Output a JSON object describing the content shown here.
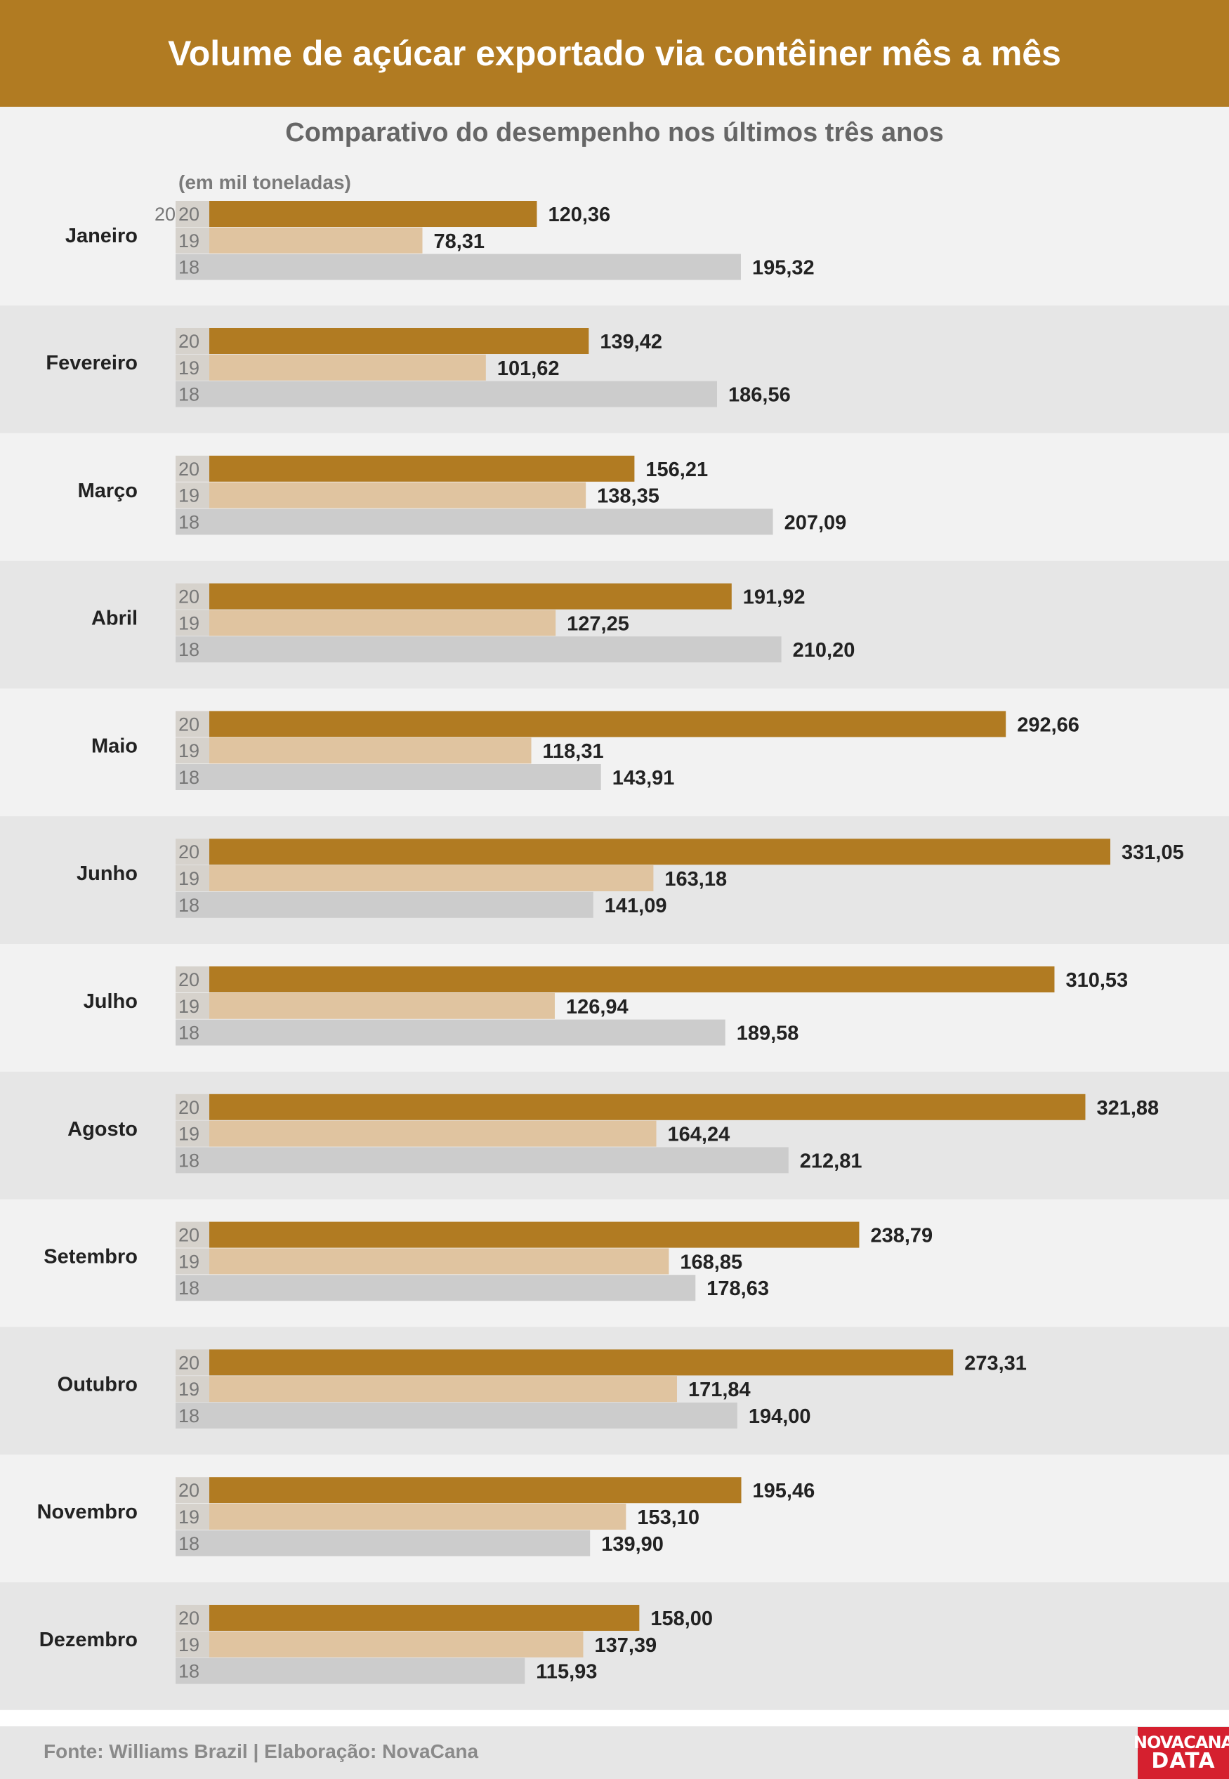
{
  "header": {
    "title": "Volume de açúcar exportado via contêiner mês a mês"
  },
  "footer": {
    "source": "Fonte: Williams Brazil | Elaboração: NovaCana"
  },
  "logo": {
    "line1": "NOVACANA",
    "line2": "DATA"
  },
  "colors": {
    "header_bg": "#b17b22",
    "series_2020": "#b17b22",
    "series_2019": "#e0c4a0",
    "series_2018": "#cccccc",
    "band_light": "#f2f2f2",
    "band_dark": "#e6e6e6",
    "logo_bg": "#d5202f"
  },
  "chart_data": {
    "type": "bar",
    "orientation": "horizontal",
    "title": "Volume de açúcar exportado via contêiner mês a mês",
    "subtitle": "Comparativo do desempenho nos últimos três anos",
    "unit_label": "(em mil toneladas)",
    "categories": [
      "Janeiro",
      "Fevereiro",
      "Março",
      "Abril",
      "Maio",
      "Junho",
      "Julho",
      "Agosto",
      "Setembro",
      "Outubro",
      "Novembro",
      "Dezembro"
    ],
    "series": [
      {
        "name": "20",
        "values": [
          120.36,
          139.42,
          156.21,
          191.92,
          292.66,
          331.05,
          310.53,
          321.88,
          238.79,
          273.31,
          195.46,
          158.0
        ]
      },
      {
        "name": "19",
        "values": [
          78.31,
          101.62,
          138.35,
          127.25,
          118.31,
          163.18,
          126.94,
          164.24,
          168.85,
          171.84,
          153.1,
          137.39
        ]
      },
      {
        "name": "18",
        "values": [
          195.32,
          186.56,
          207.09,
          210.2,
          143.91,
          141.09,
          189.58,
          212.81,
          178.63,
          194.0,
          139.9,
          115.93
        ]
      }
    ],
    "data_labels": [
      [
        "120,36",
        "78,31",
        "195,32"
      ],
      [
        "139,42",
        "101,62",
        "186,56"
      ],
      [
        "156,21",
        "138,35",
        "207,09"
      ],
      [
        "191,92",
        "127,25",
        "210,20"
      ],
      [
        "292,66",
        "118,31",
        "143,91"
      ],
      [
        "331,05",
        "163,18",
        "141,09"
      ],
      [
        "310,53",
        "126,94",
        "189,58"
      ],
      [
        "321,88",
        "164,24",
        "212,81"
      ],
      [
        "238,79",
        "168,85",
        "178,63"
      ],
      [
        "273,31",
        "171,84",
        "194,00"
      ],
      [
        "195,46",
        "153,10",
        "139,90"
      ],
      [
        "158,00",
        "137,39",
        "115,93"
      ]
    ],
    "first_year_prefix": "20",
    "xlim": [
      0,
      345
    ],
    "grid": false,
    "legend": "none"
  }
}
